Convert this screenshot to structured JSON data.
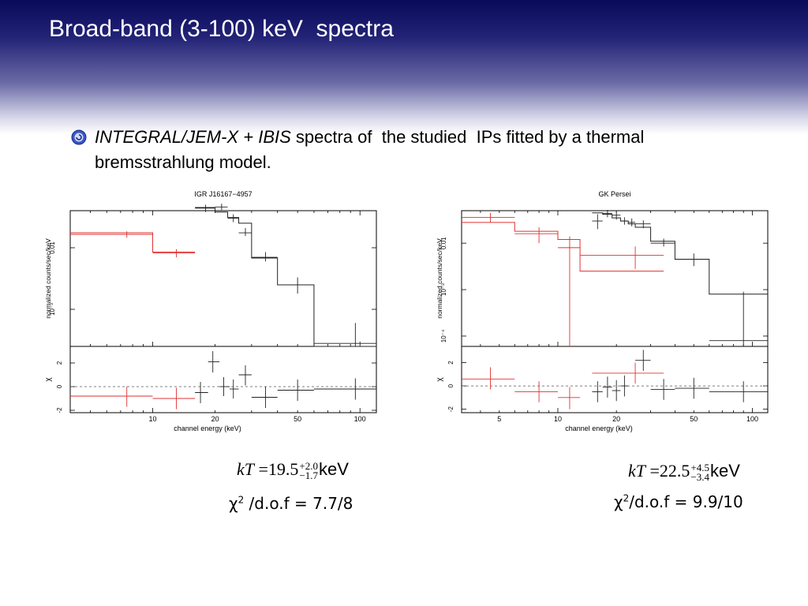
{
  "slide": {
    "title": "Broad-band (3-100) keV  spectra",
    "bullet": {
      "italic_part": "INTEGRAL/JEM-X + IBIS",
      "text_part": " spectra of  the studied  IPs fitted by a thermal bremsstrahlung model."
    }
  },
  "colors": {
    "header_dark": "#0a0a5a",
    "jemx": "#e03030",
    "ibis": "#222222",
    "axis": "#000000"
  },
  "chart_data": [
    {
      "type": "line",
      "title": "IGR J16167−4957",
      "xlabel": "channel energy (keV)",
      "ylabel_top": "normalized counts/sec/keV",
      "ylabel_bottom": "χ",
      "x_scale": "log",
      "xlim": [
        4,
        120
      ],
      "x_ticks": [
        10,
        20,
        50,
        100
      ],
      "top_y_scale": "log",
      "top_ylim": [
        0.00025,
        0.04
      ],
      "top_y_ticks": [
        {
          "v": 0.01,
          "label": "0.01"
        },
        {
          "v": 0.001,
          "label": "10⁻³"
        }
      ],
      "bottom_ylim": [
        -2.2,
        3.4
      ],
      "bottom_y_ticks": [
        -2,
        0,
        2
      ],
      "model_steps": [
        {
          "name": "JEM-X",
          "color": "red",
          "edges": [
            4,
            10,
            16
          ],
          "values": [
            0.0175,
            0.0085
          ]
        },
        {
          "name": "IBIS",
          "color": "black",
          "edges": [
            16,
            20,
            23,
            26,
            30,
            40,
            60,
            120
          ],
          "values": [
            0.045,
            0.038,
            0.031,
            0.025,
            0.0068,
            0.0025,
            0.00025
          ]
        }
      ],
      "data_points": [
        {
          "series": "JEM-X",
          "x": 7.5,
          "xlo": 4,
          "xhi": 10,
          "y": 0.0165,
          "ylo": 0.0145,
          "yhi": 0.0185
        },
        {
          "series": "JEM-X",
          "x": 13,
          "xlo": 10,
          "xhi": 16,
          "y": 0.0082,
          "ylo": 0.007,
          "yhi": 0.0095
        },
        {
          "series": "IBIS",
          "x": 18,
          "xlo": 16,
          "xhi": 20,
          "y": 0.044,
          "ylo": 0.038,
          "yhi": 0.05
        },
        {
          "series": "IBIS",
          "x": 21.5,
          "xlo": 20,
          "xhi": 23,
          "y": 0.046,
          "ylo": 0.041,
          "yhi": 0.052
        },
        {
          "series": "IBIS",
          "x": 24.5,
          "xlo": 23,
          "xhi": 26,
          "y": 0.03,
          "ylo": 0.026,
          "yhi": 0.035
        },
        {
          "series": "IBIS",
          "x": 28,
          "xlo": 26,
          "xhi": 30,
          "y": 0.0175,
          "ylo": 0.0155,
          "yhi": 0.021
        },
        {
          "series": "IBIS",
          "x": 35,
          "xlo": 30,
          "xhi": 40,
          "y": 0.007,
          "ylo": 0.006,
          "yhi": 0.0085
        },
        {
          "series": "IBIS",
          "x": 50,
          "xlo": 40,
          "xhi": 60,
          "y": 0.0025,
          "ylo": 0.0018,
          "yhi": 0.0033
        },
        {
          "series": "IBIS",
          "x": 95,
          "xlo": 60,
          "xhi": 120,
          "y": 0.00028,
          "ylo": 0.00012,
          "yhi": 0.0006
        }
      ],
      "residuals": [
        {
          "series": "JEM-X",
          "x": 7.5,
          "xlo": 4,
          "xhi": 10,
          "y": -0.8,
          "ylo": -1.7,
          "yhi": 0.0
        },
        {
          "series": "JEM-X",
          "x": 13,
          "xlo": 10,
          "xhi": 16,
          "y": -1.0,
          "ylo": -1.9,
          "yhi": -0.1
        },
        {
          "series": "IBIS",
          "x": 17,
          "xlo": 16,
          "xhi": 18.5,
          "y": -0.5,
          "ylo": -1.4,
          "yhi": 0.4
        },
        {
          "series": "IBIS",
          "x": 19.5,
          "xlo": 18.5,
          "xhi": 21,
          "y": 2.1,
          "ylo": 1.2,
          "yhi": 3.0
        },
        {
          "series": "IBIS",
          "x": 22,
          "xlo": 21,
          "xhi": 23.5,
          "y": 0.0,
          "ylo": -0.8,
          "yhi": 0.8
        },
        {
          "series": "IBIS",
          "x": 24.5,
          "xlo": 23.5,
          "xhi": 26,
          "y": -0.2,
          "ylo": -1.0,
          "yhi": 0.6
        },
        {
          "series": "IBIS",
          "x": 28,
          "xlo": 26,
          "xhi": 30,
          "y": 1.0,
          "ylo": 0.1,
          "yhi": 1.8
        },
        {
          "series": "IBIS",
          "x": 35,
          "xlo": 30,
          "xhi": 40,
          "y": -0.9,
          "ylo": -1.8,
          "yhi": 0.0
        },
        {
          "series": "IBIS",
          "x": 50,
          "xlo": 40,
          "xhi": 60,
          "y": -0.3,
          "ylo": -1.2,
          "yhi": 0.6
        },
        {
          "series": "IBIS",
          "x": 95,
          "xlo": 60,
          "xhi": 120,
          "y": -0.2,
          "ylo": -1.1,
          "yhi": 0.7
        }
      ],
      "fit": {
        "label_kT": "kT",
        "equals": "=",
        "value": "19.5",
        "err_plus": "+2.0",
        "err_minus": "−1.7",
        "unit": "keV",
        "chi_symbol": "χ",
        "chi_power": "2",
        "chi_text": " /d.o.f = 7.7/8"
      }
    },
    {
      "type": "line",
      "title": "GK Persei",
      "xlabel": "channel energy (keV)",
      "ylabel_top": "normalized counts/sec/keV",
      "ylabel_bottom": "χ",
      "x_scale": "log",
      "xlim": [
        3.2,
        120
      ],
      "x_ticks": [
        5,
        10,
        20,
        50,
        100
      ],
      "top_y_scale": "log",
      "top_ylim": [
        6e-05,
        0.05
      ],
      "top_y_ticks": [
        {
          "v": 0.01,
          "label": "0.01"
        },
        {
          "v": 0.001,
          "label": "10⁻³"
        },
        {
          "v": 0.0001,
          "label": "10⁻⁴"
        }
      ],
      "bottom_ylim": [
        -2.3,
        3.4
      ],
      "bottom_y_ticks": [
        -2,
        0,
        2
      ],
      "model_steps": [
        {
          "name": "JEM-X",
          "color": "red",
          "edges": [
            3.2,
            6,
            10,
            13,
            35
          ],
          "values": [
            0.028,
            0.018,
            0.012,
            0.0025
          ]
        },
        {
          "name": "IBIS",
          "color": "black",
          "edges": [
            15,
            17,
            19,
            21,
            23,
            25,
            30,
            40,
            60,
            120
          ],
          "values": [
            0.045,
            0.042,
            0.035,
            0.03,
            0.026,
            0.022,
            0.011,
            0.0045,
            0.0008
          ]
        }
      ],
      "data_points": [
        {
          "series": "JEM-X",
          "x": 4.5,
          "xlo": 3.2,
          "xhi": 6,
          "y": 0.036,
          "ylo": 0.028,
          "yhi": 0.045
        },
        {
          "series": "JEM-X",
          "x": 8,
          "xlo": 6,
          "xhi": 10,
          "y": 0.016,
          "ylo": 0.01,
          "yhi": 0.022
        },
        {
          "series": "JEM-X",
          "x": 11.5,
          "xlo": 10,
          "xhi": 13,
          "y": 0.008,
          "ylo": 6e-05,
          "yhi": 0.014
        },
        {
          "series": "JEM-X",
          "x": 25,
          "xlo": 13,
          "xhi": 35,
          "y": 0.0055,
          "ylo": 0.0028,
          "yhi": 0.0085
        },
        {
          "series": "IBIS",
          "x": 16,
          "xlo": 15,
          "xhi": 17,
          "y": 0.03,
          "ylo": 0.02,
          "yhi": 0.042
        },
        {
          "series": "IBIS",
          "x": 18,
          "xlo": 17,
          "xhi": 19,
          "y": 0.044,
          "ylo": 0.036,
          "yhi": 0.052
        },
        {
          "series": "IBIS",
          "x": 20,
          "xlo": 19,
          "xhi": 21,
          "y": 0.04,
          "ylo": 0.032,
          "yhi": 0.048
        },
        {
          "series": "IBIS",
          "x": 22,
          "xlo": 21,
          "xhi": 23,
          "y": 0.03,
          "ylo": 0.025,
          "yhi": 0.036
        },
        {
          "series": "IBIS",
          "x": 24,
          "xlo": 23,
          "xhi": 25,
          "y": 0.028,
          "ylo": 0.023,
          "yhi": 0.034
        },
        {
          "series": "IBIS",
          "x": 27.5,
          "xlo": 25,
          "xhi": 30,
          "y": 0.026,
          "ylo": 0.021,
          "yhi": 0.031
        },
        {
          "series": "IBIS",
          "x": 35,
          "xlo": 30,
          "xhi": 40,
          "y": 0.01,
          "ylo": 0.0085,
          "yhi": 0.0125
        },
        {
          "series": "IBIS",
          "x": 50,
          "xlo": 40,
          "xhi": 60,
          "y": 0.0045,
          "ylo": 0.0032,
          "yhi": 0.006
        },
        {
          "series": "IBIS",
          "x": 90,
          "xlo": 60,
          "xhi": 120,
          "y": 8e-05,
          "ylo": 6e-05,
          "yhi": 0.0009
        }
      ],
      "residuals": [
        {
          "series": "JEM-X",
          "x": 4.5,
          "xlo": 3.2,
          "xhi": 6,
          "y": 0.6,
          "ylo": -0.3,
          "yhi": 1.6
        },
        {
          "series": "JEM-X",
          "x": 8,
          "xlo": 6,
          "xhi": 10,
          "y": -0.5,
          "ylo": -1.4,
          "yhi": 0.4
        },
        {
          "series": "JEM-X",
          "x": 11.5,
          "xlo": 10,
          "xhi": 13,
          "y": -1.0,
          "ylo": -2.0,
          "yhi": -0.1
        },
        {
          "series": "JEM-X",
          "x": 25,
          "xlo": 15,
          "xhi": 35,
          "y": 1.1,
          "ylo": 0.2,
          "yhi": 2.0
        },
        {
          "series": "IBIS",
          "x": 16,
          "xlo": 15,
          "xhi": 17,
          "y": -0.5,
          "ylo": -1.4,
          "yhi": 0.4
        },
        {
          "series": "IBIS",
          "x": 18,
          "xlo": 17,
          "xhi": 19,
          "y": -0.1,
          "ylo": -1.0,
          "yhi": 0.8
        },
        {
          "series": "IBIS",
          "x": 20,
          "xlo": 19,
          "xhi": 21,
          "y": -0.4,
          "ylo": -1.3,
          "yhi": 0.5
        },
        {
          "series": "IBIS",
          "x": 22,
          "xlo": 21,
          "xhi": 23,
          "y": 0.0,
          "ylo": -0.9,
          "yhi": 0.9
        },
        {
          "series": "IBIS",
          "x": 27.5,
          "xlo": 25,
          "xhi": 30,
          "y": 2.2,
          "ylo": 1.3,
          "yhi": 3.1
        },
        {
          "series": "IBIS",
          "x": 35,
          "xlo": 30,
          "xhi": 40,
          "y": -0.3,
          "ylo": -1.2,
          "yhi": 0.6
        },
        {
          "series": "IBIS",
          "x": 50,
          "xlo": 40,
          "xhi": 60,
          "y": -0.2,
          "ylo": -1.1,
          "yhi": 0.7
        },
        {
          "series": "IBIS",
          "x": 90,
          "xlo": 60,
          "xhi": 120,
          "y": -0.5,
          "ylo": -1.4,
          "yhi": 0.4
        }
      ],
      "fit": {
        "label_kT": "kT",
        "equals": "=",
        "value": "22.5",
        "err_plus": "+4.5",
        "err_minus": "−3.4",
        "unit": "keV",
        "chi_symbol": "χ",
        "chi_power": "2",
        "chi_text": "/d.o.f = 9.9/10"
      }
    }
  ]
}
